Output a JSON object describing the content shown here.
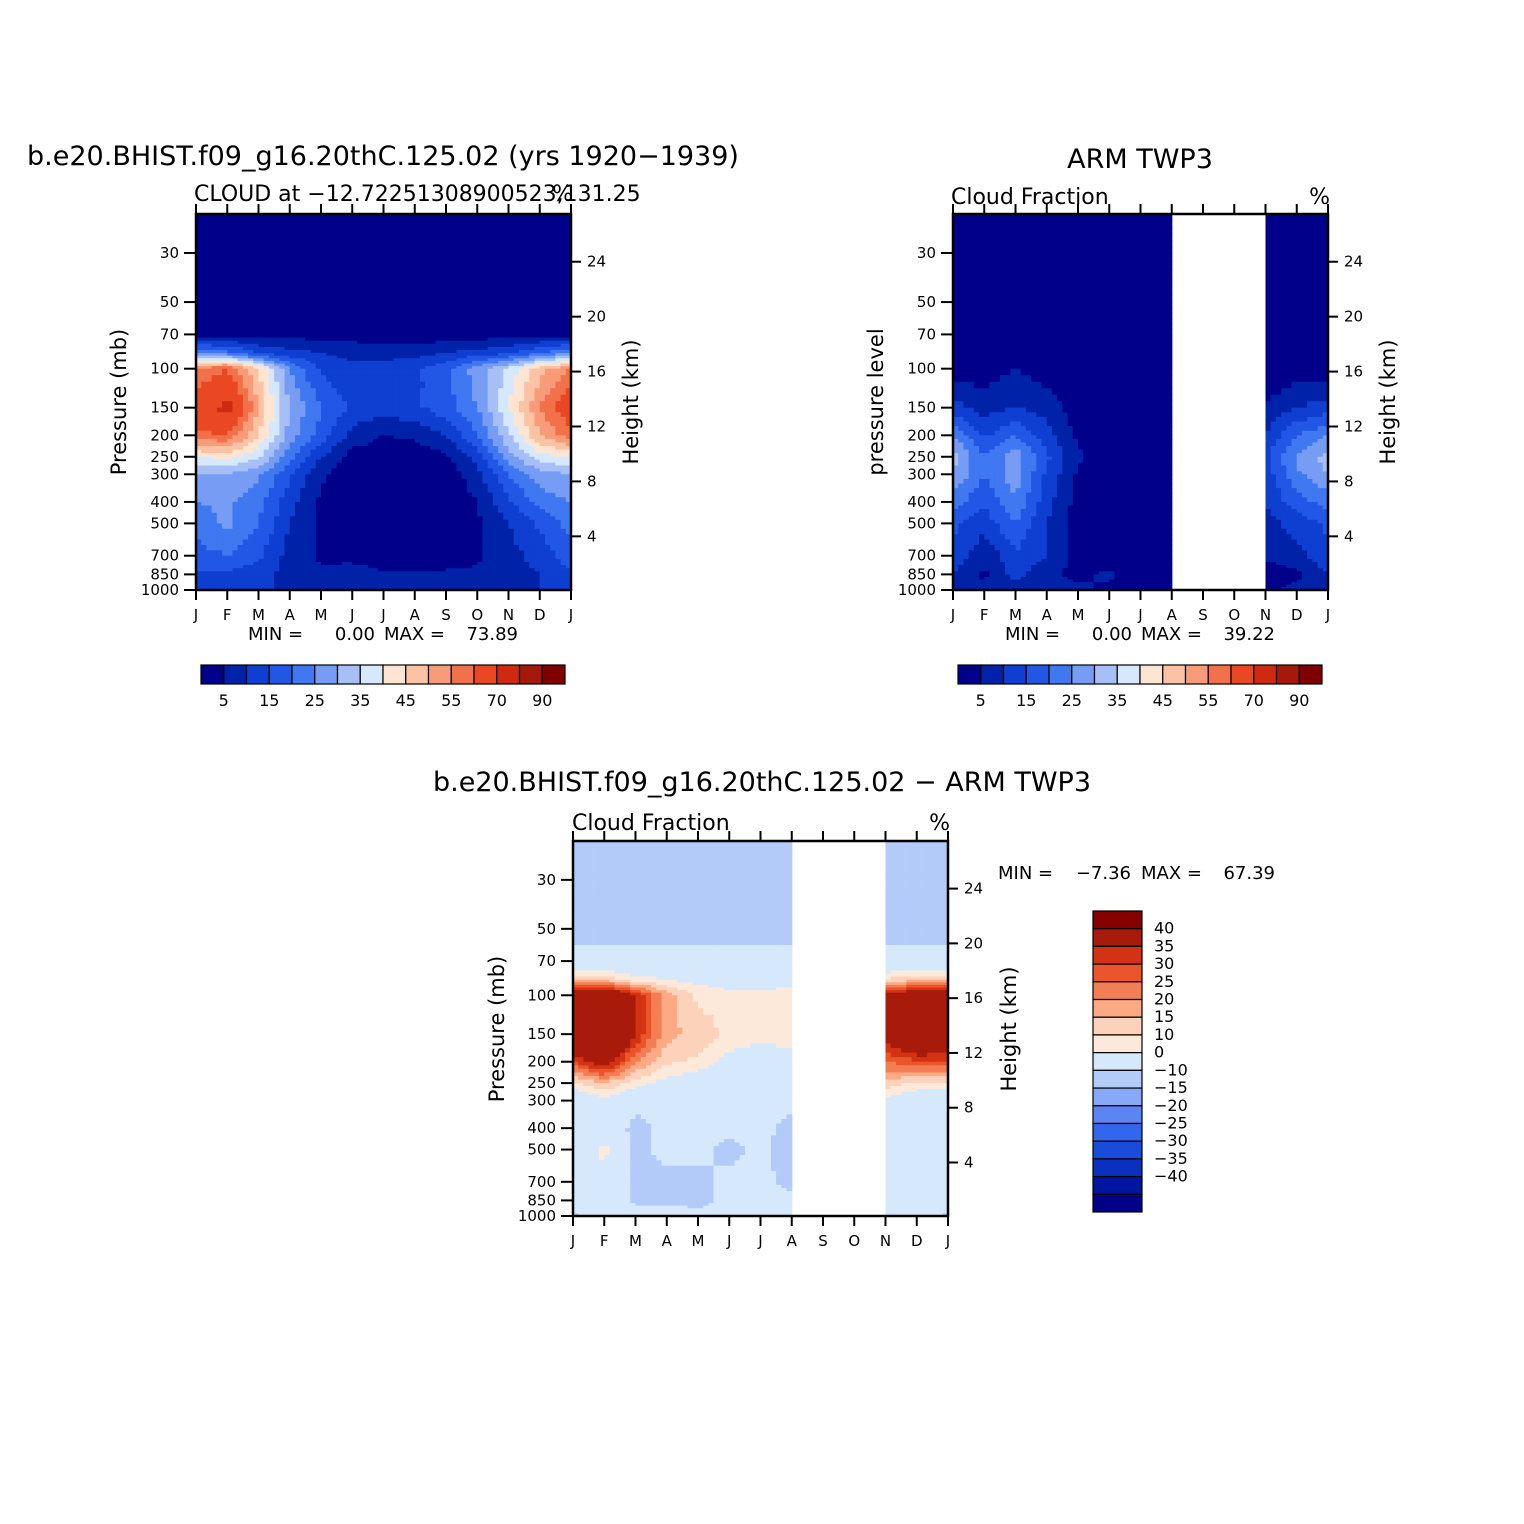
{
  "figure": {
    "panel1": {
      "title": "b.e20.BHIST.f09_g16.20thC.125.02 (yrs 1920−1939)",
      "subtitle_left": "CLOUD at −12.72251308900523,131.25",
      "subtitle_right": "%",
      "ylabel_left": "Pressure (mb)",
      "ylabel_right": "Height (km)",
      "min_label": "MIN =",
      "min_value": "0.00",
      "max_label": "MAX =",
      "max_value": "73.89"
    },
    "panel2": {
      "title": "ARM TWP3",
      "subtitle_left": "Cloud Fraction",
      "subtitle_right": "%",
      "ylabel_left": "pressure level",
      "ylabel_right": "Height (km)",
      "min_label": "MIN =",
      "min_value": "0.00",
      "max_label": "MAX =",
      "max_value": "39.22"
    },
    "panel3": {
      "title": "b.e20.BHIST.f09_g16.20thC.125.02 − ARM TWP3",
      "subtitle_left": "Cloud Fraction",
      "subtitle_right": "%",
      "ylabel_left": "Pressure (mb)",
      "ylabel_right": "Height (km)",
      "min_label": "MIN =",
      "min_value": "−7.36",
      "max_label": "MAX =",
      "max_value": "67.39"
    },
    "seq_colorbar": {
      "colors": [
        "#00008b",
        "#0022a8",
        "#0e3fd0",
        "#2257e6",
        "#3f78f0",
        "#779cf4",
        "#a6c0f7",
        "#d6e8fc",
        "#fde5d2",
        "#fbc3a4",
        "#f89b79",
        "#f2714b",
        "#e94823",
        "#cf2a10",
        "#a6180a",
        "#7f0000"
      ],
      "labels": [
        "5",
        "15",
        "25",
        "35",
        "45",
        "55",
        "70",
        "90"
      ]
    },
    "div_colorbar": {
      "colors": [
        "#00008b",
        "#0016a0",
        "#0a30c0",
        "#1a4cdc",
        "#3366ee",
        "#5a86f3",
        "#87a9f6",
        "#b3cbf9",
        "#d6e8fc",
        "#fde9da",
        "#fcd2ba",
        "#fbaa84",
        "#f47e54",
        "#eb5529",
        "#d33312",
        "#a81a0a",
        "#860000"
      ],
      "labels": [
        "40",
        "35",
        "30",
        "25",
        "20",
        "15",
        "10",
        "0",
        "−10",
        "−15",
        "−20",
        "−25",
        "−30",
        "−35",
        "−40"
      ]
    }
  },
  "chart_data": [
    {
      "type": "heatmap",
      "title": "b.e20.BHIST.f09_g16.20thC.125.02 (yrs 1920−1939)",
      "subtitle": "CLOUD at −12.72251308900523,131.25",
      "units": "%",
      "xlabel": "",
      "ylabel": "Pressure (mb)",
      "ylabel_right": "Height (km)",
      "x": [
        "J",
        "F",
        "M",
        "A",
        "M",
        "J",
        "J",
        "A",
        "S",
        "O",
        "N",
        "D",
        "J"
      ],
      "y_pressure_ticks": [
        30,
        50,
        70,
        100,
        150,
        200,
        250,
        300,
        400,
        500,
        700,
        850,
        1000
      ],
      "y_height_ticks": [
        24,
        20,
        16,
        12,
        8,
        4
      ],
      "ylim": [
        20,
        1000
      ],
      "y_scale": "log",
      "levels": [
        5,
        10,
        15,
        20,
        25,
        30,
        35,
        40,
        45,
        50,
        55,
        60,
        70,
        80,
        90
      ],
      "contour_fill_levels": [
        5,
        10,
        15,
        20,
        25,
        30,
        35,
        40,
        45,
        50,
        55,
        60,
        70,
        80,
        90
      ],
      "min": 0.0,
      "max": 73.89,
      "pressures": [
        20,
        30,
        50,
        70,
        85,
        100,
        150,
        200,
        250,
        300,
        400,
        500,
        700,
        850,
        1000
      ],
      "values": [
        [
          0,
          0,
          0,
          0,
          0,
          0,
          0,
          0,
          0,
          0,
          0,
          0,
          0
        ],
        [
          0,
          0,
          0,
          0,
          0,
          0,
          0,
          0,
          0,
          0,
          0,
          0,
          0
        ],
        [
          0,
          0,
          0,
          0,
          0,
          0,
          0,
          0,
          0,
          0,
          0,
          0,
          0
        ],
        [
          3,
          3,
          3,
          3,
          3,
          3,
          2,
          2,
          2,
          2,
          3,
          3,
          3
        ],
        [
          25,
          22,
          15,
          12,
          10,
          8,
          8,
          8,
          10,
          12,
          14,
          20,
          25
        ],
        [
          55,
          60,
          45,
          25,
          14,
          12,
          12,
          14,
          18,
          28,
          36,
          48,
          55
        ],
        [
          65,
          73,
          50,
          30,
          20,
          14,
          12,
          14,
          18,
          25,
          40,
          55,
          65
        ],
        [
          58,
          60,
          45,
          28,
          18,
          8,
          5,
          6,
          10,
          20,
          34,
          50,
          58
        ],
        [
          40,
          42,
          36,
          22,
          10,
          3,
          2,
          2,
          4,
          12,
          28,
          38,
          40
        ],
        [
          30,
          30,
          26,
          16,
          6,
          1,
          1,
          1,
          2,
          8,
          20,
          28,
          30
        ],
        [
          25,
          26,
          22,
          12,
          4,
          1,
          0,
          0,
          1,
          5,
          14,
          22,
          25
        ],
        [
          22,
          26,
          20,
          10,
          4,
          1,
          0,
          0,
          1,
          4,
          10,
          16,
          22
        ],
        [
          18,
          20,
          16,
          8,
          4,
          3,
          1,
          1,
          2,
          4,
          8,
          12,
          18
        ],
        [
          14,
          14,
          12,
          8,
          6,
          8,
          6,
          6,
          6,
          6,
          8,
          10,
          14
        ],
        [
          10,
          10,
          10,
          10,
          8,
          8,
          8,
          8,
          8,
          8,
          8,
          10,
          10
        ]
      ]
    },
    {
      "type": "heatmap",
      "title": "ARM TWP3",
      "subtitle": "Cloud Fraction",
      "units": "%",
      "xlabel": "",
      "ylabel": "pressure level",
      "ylabel_right": "Height (km)",
      "x": [
        "J",
        "F",
        "M",
        "A",
        "M",
        "J",
        "J",
        "A",
        "S",
        "O",
        "N",
        "D",
        "J"
      ],
      "y_pressure_ticks": [
        30,
        50,
        70,
        100,
        150,
        200,
        250,
        300,
        400,
        500,
        700,
        850,
        1000
      ],
      "y_height_ticks": [
        24,
        20,
        16,
        12,
        8,
        4
      ],
      "ylim": [
        20,
        1000
      ],
      "y_scale": "log",
      "levels": [
        5,
        10,
        15,
        20,
        25,
        30,
        35,
        40,
        45,
        50,
        55,
        60,
        70,
        80,
        90
      ],
      "min": 0.0,
      "max": 39.22,
      "missing_months": [
        "S",
        "O"
      ],
      "pressures": [
        20,
        30,
        50,
        70,
        85,
        100,
        150,
        200,
        250,
        300,
        400,
        500,
        700,
        850,
        1000
      ],
      "values": [
        [
          0,
          0,
          0,
          0,
          0,
          0,
          0,
          0,
          null,
          null,
          0,
          0,
          0
        ],
        [
          0,
          0,
          0,
          0,
          0,
          0,
          0,
          0,
          null,
          null,
          0,
          0,
          0
        ],
        [
          0,
          0,
          0,
          0,
          0,
          0,
          0,
          0,
          null,
          null,
          0,
          0,
          0
        ],
        [
          0,
          0,
          0,
          0,
          0,
          0,
          0,
          0,
          null,
          null,
          0,
          0,
          0
        ],
        [
          0,
          0,
          0,
          0,
          0,
          0,
          0,
          0,
          null,
          null,
          0,
          0,
          0
        ],
        [
          2,
          2,
          5,
          2,
          0,
          0,
          0,
          0,
          null,
          null,
          0,
          2,
          2
        ],
        [
          12,
          8,
          10,
          8,
          2,
          0,
          0,
          0,
          null,
          null,
          6,
          10,
          12
        ],
        [
          25,
          14,
          20,
          12,
          4,
          0,
          0,
          0,
          null,
          null,
          10,
          20,
          25
        ],
        [
          32,
          20,
          28,
          16,
          6,
          0,
          0,
          0,
          null,
          null,
          14,
          26,
          32
        ],
        [
          30,
          20,
          28,
          14,
          4,
          0,
          0,
          0,
          null,
          null,
          12,
          24,
          30
        ],
        [
          22,
          16,
          24,
          12,
          3,
          0,
          0,
          0,
          null,
          null,
          10,
          18,
          22
        ],
        [
          16,
          12,
          20,
          10,
          2,
          0,
          0,
          0,
          null,
          null,
          8,
          12,
          16
        ],
        [
          14,
          6,
          14,
          10,
          2,
          0,
          0,
          0,
          null,
          null,
          6,
          8,
          14
        ],
        [
          10,
          4,
          12,
          6,
          4,
          6,
          2,
          0,
          null,
          null,
          2,
          4,
          10
        ],
        [
          6,
          6,
          6,
          6,
          6,
          4,
          2,
          2,
          null,
          null,
          4,
          6,
          6
        ]
      ]
    },
    {
      "type": "heatmap",
      "title": "b.e20.BHIST.f09_g16.20thC.125.02 − ARM TWP3",
      "subtitle": "Cloud Fraction",
      "units": "%",
      "xlabel": "",
      "ylabel": "Pressure (mb)",
      "ylabel_right": "Height (km)",
      "x": [
        "J",
        "F",
        "M",
        "A",
        "M",
        "J",
        "J",
        "A",
        "S",
        "O",
        "N",
        "D",
        "J"
      ],
      "y_pressure_ticks": [
        30,
        50,
        70,
        100,
        150,
        200,
        250,
        300,
        400,
        500,
        700,
        850,
        1000
      ],
      "y_height_ticks": [
        24,
        20,
        16,
        12,
        8,
        4
      ],
      "ylim": [
        20,
        1000
      ],
      "y_scale": "log",
      "levels": [
        -40,
        -35,
        -30,
        -25,
        -20,
        -15,
        -10,
        0,
        10,
        15,
        20,
        25,
        30,
        35,
        40
      ],
      "min": -7.36,
      "max": 67.39,
      "missing_months": [
        "S",
        "O"
      ],
      "pressures": [
        20,
        30,
        50,
        70,
        85,
        100,
        150,
        200,
        250,
        300,
        400,
        500,
        700,
        850,
        1000
      ],
      "values": [
        [
          -1,
          -1,
          -1,
          -1,
          -1,
          -1,
          -1,
          -1,
          null,
          null,
          -1,
          -1,
          -1
        ],
        [
          -1,
          -1,
          -1,
          -1,
          -1,
          -1,
          -1,
          -1,
          null,
          null,
          -1,
          -1,
          -1
        ],
        [
          -1,
          -1,
          -1,
          -1,
          -1,
          -1,
          -1,
          -1,
          null,
          null,
          -1,
          -1,
          -1
        ],
        [
          1,
          1,
          1,
          1,
          1,
          1,
          1,
          1,
          null,
          null,
          1,
          1,
          1
        ],
        [
          18,
          18,
          12,
          10,
          8,
          6,
          6,
          6,
          null,
          null,
          16,
          18,
          18
        ],
        [
          50,
          55,
          40,
          22,
          14,
          12,
          12,
          14,
          null,
          null,
          42,
          50,
          50
        ],
        [
          55,
          67,
          40,
          22,
          18,
          14,
          12,
          14,
          null,
          null,
          45,
          60,
          55
        ],
        [
          34,
          46,
          26,
          16,
          14,
          8,
          5,
          6,
          null,
          null,
          30,
          34,
          34
        ],
        [
          14,
          20,
          12,
          8,
          5,
          3,
          2,
          2,
          null,
          null,
          18,
          14,
          14
        ],
        [
          3,
          8,
          2,
          4,
          2,
          1,
          1,
          1,
          null,
          null,
          8,
          4,
          3
        ],
        [
          3,
          5,
          -2,
          2,
          1,
          1,
          1,
          -1,
          null,
          null,
          4,
          4,
          3
        ],
        [
          5,
          12,
          -2,
          2,
          1,
          -1,
          1,
          -2,
          null,
          null,
          2,
          4,
          5
        ],
        [
          4,
          8,
          -2,
          -2,
          -1,
          1,
          1,
          -1,
          null,
          null,
          2,
          4,
          4
        ],
        [
          4,
          6,
          -1,
          -1,
          -1,
          1,
          2,
          1,
          null,
          null,
          2,
          4,
          4
        ],
        [
          -1,
          2,
          2,
          2,
          1,
          2,
          2,
          1,
          null,
          null,
          2,
          2,
          -1
        ]
      ]
    }
  ]
}
